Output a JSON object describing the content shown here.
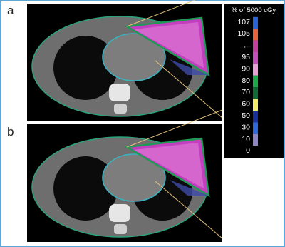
{
  "panels": [
    {
      "label": "a"
    },
    {
      "label": "b"
    }
  ],
  "legend": {
    "title": "% of 5000 cGy",
    "items": [
      {
        "label": "107",
        "color": "#2a64d6"
      },
      {
        "label": "105",
        "color": "#e8643c"
      },
      {
        "label": "...",
        "color": "#c0409a"
      },
      {
        "label": "95",
        "color": "#c34fb8"
      },
      {
        "label": "90",
        "color": "#e7a3d6"
      },
      {
        "label": "80",
        "color": "#1fa84a"
      },
      {
        "label": "70",
        "color": "#0f6a34"
      },
      {
        "label": "60",
        "color": "#f2ec6a"
      },
      {
        "label": "50",
        "color": "#1a2f9a"
      },
      {
        "label": "30",
        "color": "#2f6ad8"
      },
      {
        "label": "10",
        "color": "#8f86c4"
      },
      {
        "label": "0"
      }
    ]
  }
}
